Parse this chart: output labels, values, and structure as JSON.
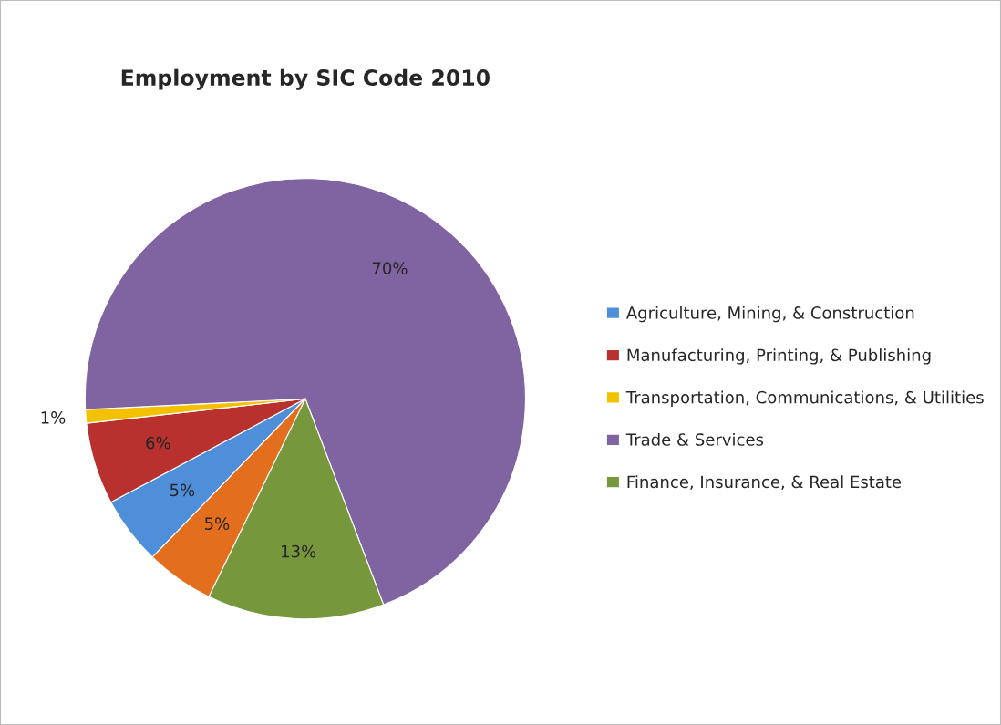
{
  "chart_data": {
    "type": "pie",
    "title": "Employment by SIC Code 2010",
    "categories": [
      "Agriculture, Mining, & Construction",
      "Manufacturing, Printing, & Publishing",
      "Transportation, Communications, & Utilities",
      "Trade & Services",
      "Finance, Insurance, & Real Estate",
      null
    ],
    "values": [
      5,
      6,
      1,
      70,
      13,
      5
    ],
    "colors": [
      "#4f8ed8",
      "#b8312f",
      "#f2c200",
      "#8064a2",
      "#77973d",
      "#e36f1e"
    ],
    "value_labels": [
      "5%",
      "6%",
      "1%",
      "70%",
      "13%",
      "5%"
    ],
    "legend": "right"
  }
}
